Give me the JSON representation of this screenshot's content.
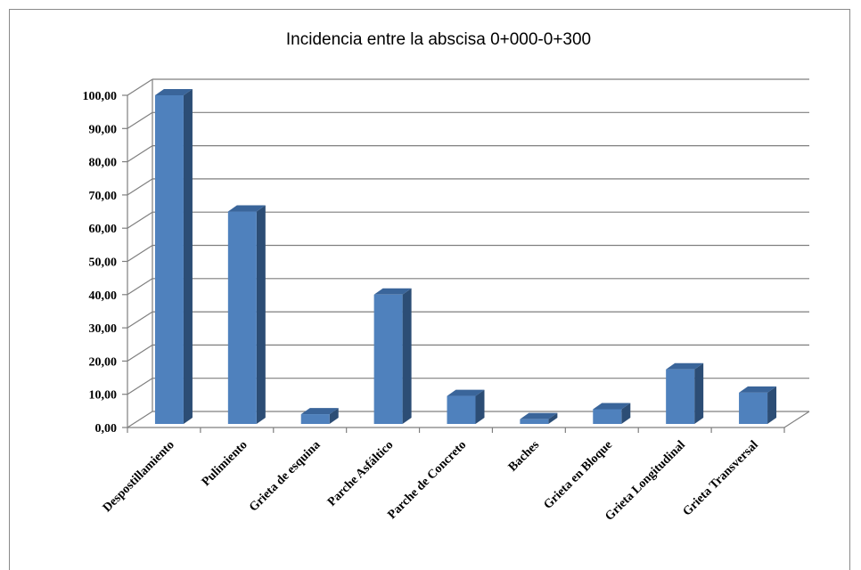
{
  "chart_data": {
    "type": "bar",
    "title": "Incidencia  entre la abscisa 0+000-0+300",
    "xlabel": "",
    "ylabel": "",
    "categories": [
      "Despostillamiento",
      "Pulimiento",
      "Grieta de esquina",
      "Parche Asfáltico",
      "Parche de Concreto",
      "Baches",
      "Grieta en Bloque",
      "Grieta Longitudinal",
      "Grieta Transversal"
    ],
    "values": [
      100,
      65,
      4,
      40,
      9.5,
      2.5,
      5.5,
      17.5,
      10.5
    ],
    "ylim": [
      0,
      100
    ],
    "yticks": [
      "0,00",
      "10,00",
      "20,00",
      "30,00",
      "40,00",
      "50,00",
      "60,00",
      "70,00",
      "80,00",
      "90,00",
      "100,00"
    ],
    "grid": true,
    "legend": "none",
    "colors": {
      "bar_front": "#4f81bd",
      "bar_side": "#2c4d75",
      "bar_top": "#3a659a",
      "grid": "#7f7f7f",
      "axis": "#7f7f7f"
    }
  }
}
